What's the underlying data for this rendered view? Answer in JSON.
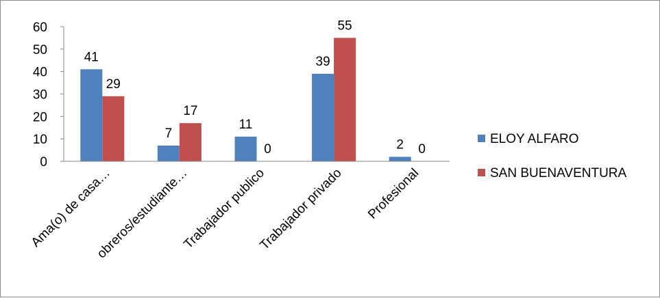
{
  "chart_data": {
    "type": "bar",
    "categories": [
      "Ama(o) de casa…",
      "obreros/estudiante…",
      "Trabajador publico",
      "Trabajador privado",
      "Profesional"
    ],
    "series": [
      {
        "name": "ELOY ALFARO",
        "values": [
          41,
          7,
          11,
          39,
          2
        ],
        "color": "#4f81bd"
      },
      {
        "name": "SAN BUENAVENTURA",
        "values": [
          29,
          17,
          0,
          55,
          0
        ],
        "color": "#c0504d"
      }
    ],
    "ylim": [
      0,
      60
    ],
    "yticks": [
      0,
      10,
      20,
      30,
      40,
      50,
      60
    ],
    "grid": false,
    "legend_position": "right"
  }
}
